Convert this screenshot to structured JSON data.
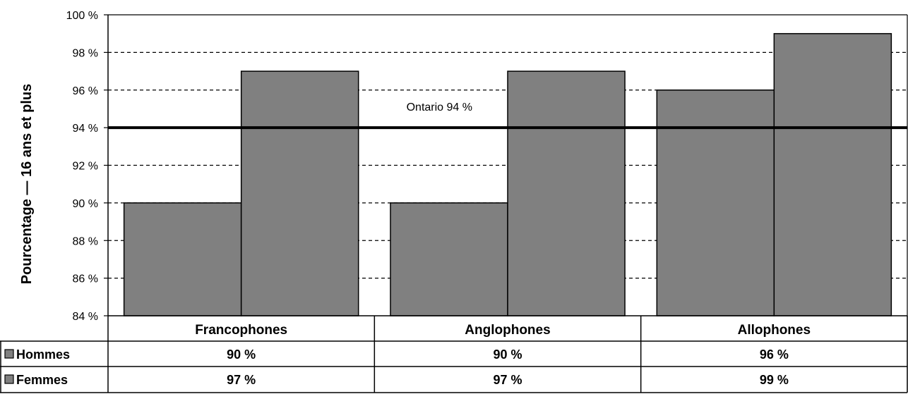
{
  "chart_data": {
    "type": "bar",
    "title": "",
    "ylabel": "Pourcentage — 16 ans et plus",
    "ylim": [
      84,
      100
    ],
    "yticks": [
      84,
      86,
      88,
      90,
      92,
      94,
      96,
      98,
      100
    ],
    "ytick_labels": [
      "84 %",
      "86 %",
      "88 %",
      "90 %",
      "92 %",
      "94 %",
      "96 %",
      "98 %",
      "100 %"
    ],
    "grid": "horizontal-dashed",
    "bar_color": "#808080",
    "categories": [
      "Francophones",
      "Anglophones",
      "Allophones"
    ],
    "series": [
      {
        "name": "Hommes",
        "values": [
          90,
          90,
          96
        ],
        "labels": [
          "90 %",
          "90 %",
          "96 %"
        ]
      },
      {
        "name": "Femmes",
        "values": [
          97,
          97,
          99
        ],
        "labels": [
          "97 %",
          "97 %",
          "99 %"
        ]
      }
    ],
    "reference_line": {
      "value": 94,
      "label": "Ontario 94 %"
    },
    "legend": "data-table-below"
  }
}
